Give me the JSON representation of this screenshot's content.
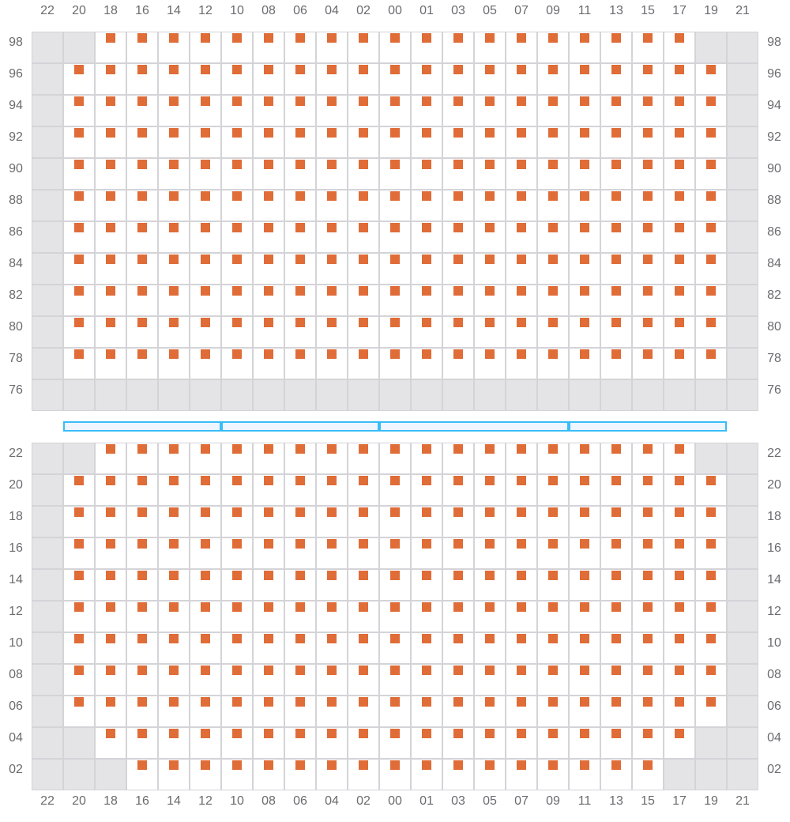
{
  "columns": [
    "22",
    "20",
    "18",
    "16",
    "14",
    "12",
    "10",
    "08",
    "06",
    "04",
    "02",
    "00",
    "01",
    "03",
    "05",
    "07",
    "09",
    "11",
    "13",
    "15",
    "17",
    "19",
    "21"
  ],
  "colors": {
    "seat": "#e06c37",
    "unavailable": "#e4e4e7",
    "grid": "#d4d4d8",
    "divider": "#38bdf8"
  },
  "sections": [
    {
      "name": "upper",
      "rows": [
        {
          "label": "98",
          "seats_from": "18",
          "seats_to": "17"
        },
        {
          "label": "96",
          "seats_from": "20",
          "seats_to": "19"
        },
        {
          "label": "94",
          "seats_from": "20",
          "seats_to": "19"
        },
        {
          "label": "92",
          "seats_from": "20",
          "seats_to": "19"
        },
        {
          "label": "90",
          "seats_from": "20",
          "seats_to": "19"
        },
        {
          "label": "88",
          "seats_from": "20",
          "seats_to": "19"
        },
        {
          "label": "86",
          "seats_from": "20",
          "seats_to": "19"
        },
        {
          "label": "84",
          "seats_from": "20",
          "seats_to": "19"
        },
        {
          "label": "82",
          "seats_from": "20",
          "seats_to": "19"
        },
        {
          "label": "80",
          "seats_from": "20",
          "seats_to": "19"
        },
        {
          "label": "78",
          "seats_from": "20",
          "seats_to": "19"
        },
        {
          "label": "76",
          "seats_from": null,
          "seats_to": null
        }
      ]
    },
    {
      "name": "lower",
      "rows": [
        {
          "label": "22",
          "seats_from": "18",
          "seats_to": "17"
        },
        {
          "label": "20",
          "seats_from": "20",
          "seats_to": "19"
        },
        {
          "label": "18",
          "seats_from": "20",
          "seats_to": "19"
        },
        {
          "label": "16",
          "seats_from": "20",
          "seats_to": "19"
        },
        {
          "label": "14",
          "seats_from": "20",
          "seats_to": "19"
        },
        {
          "label": "12",
          "seats_from": "20",
          "seats_to": "19"
        },
        {
          "label": "10",
          "seats_from": "20",
          "seats_to": "19"
        },
        {
          "label": "08",
          "seats_from": "20",
          "seats_to": "19"
        },
        {
          "label": "06",
          "seats_from": "20",
          "seats_to": "19"
        },
        {
          "label": "04",
          "seats_from": "18",
          "seats_to": "17"
        },
        {
          "label": "02",
          "seats_from": "16",
          "seats_to": "15"
        }
      ]
    }
  ],
  "divider_segments": [
    {
      "from": "20",
      "to": "12"
    },
    {
      "from": "10",
      "to": "02"
    },
    {
      "from": "00",
      "to": "09"
    },
    {
      "from": "11",
      "to": "19"
    }
  ]
}
